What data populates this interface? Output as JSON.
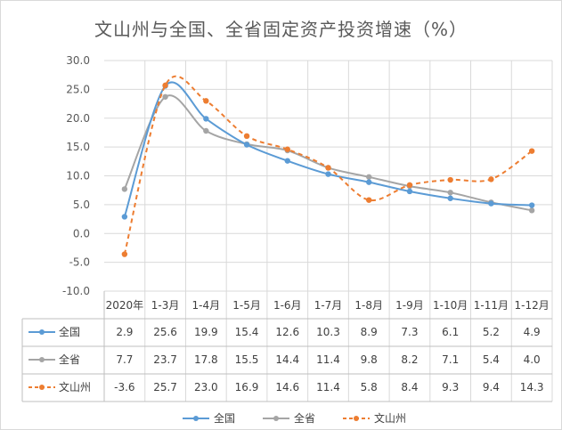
{
  "chart_data": {
    "type": "line",
    "title": "文山州与全国、全省固定资产投资增速（%）",
    "categories": [
      "2020年",
      "1-3月",
      "1-4月",
      "1-5月",
      "1-6月",
      "1-7月",
      "1-8月",
      "1-9月",
      "1-10月",
      "1-11月",
      "1-12月"
    ],
    "ylim": [
      -10,
      30
    ],
    "yticks": [
      "30.0",
      "25.0",
      "20.0",
      "15.0",
      "10.0",
      "5.0",
      "0.0",
      "-5.0",
      "-10.0"
    ],
    "grid": true,
    "legend": "bottom",
    "series": [
      {
        "name": "全国",
        "color": "#5b9bd5",
        "dashed": false,
        "values": [
          2.9,
          25.6,
          19.9,
          15.4,
          12.6,
          10.3,
          8.9,
          7.3,
          6.1,
          5.2,
          4.9
        ],
        "labels": [
          "2.9",
          "25.6",
          "19.9",
          "15.4",
          "12.6",
          "10.3",
          "8.9",
          "7.3",
          "6.1",
          "5.2",
          "4.9"
        ]
      },
      {
        "name": "全省",
        "color": "#a5a5a5",
        "dashed": false,
        "values": [
          7.7,
          23.7,
          17.8,
          15.5,
          14.4,
          11.4,
          9.8,
          8.2,
          7.1,
          5.4,
          4.0
        ],
        "labels": [
          "7.7",
          "23.7",
          "17.8",
          "15.5",
          "14.4",
          "11.4",
          "9.8",
          "8.2",
          "7.1",
          "5.4",
          "4.0"
        ]
      },
      {
        "name": "文山州",
        "color": "#ed7d31",
        "dashed": true,
        "values": [
          -3.6,
          25.7,
          23.0,
          16.9,
          14.6,
          11.4,
          5.8,
          8.4,
          9.3,
          9.4,
          14.3
        ],
        "labels": [
          "-3.6",
          "25.7",
          "23.0",
          "16.9",
          "14.6",
          "11.4",
          "5.8",
          "8.4",
          "9.3",
          "9.4",
          "14.3"
        ]
      }
    ]
  }
}
